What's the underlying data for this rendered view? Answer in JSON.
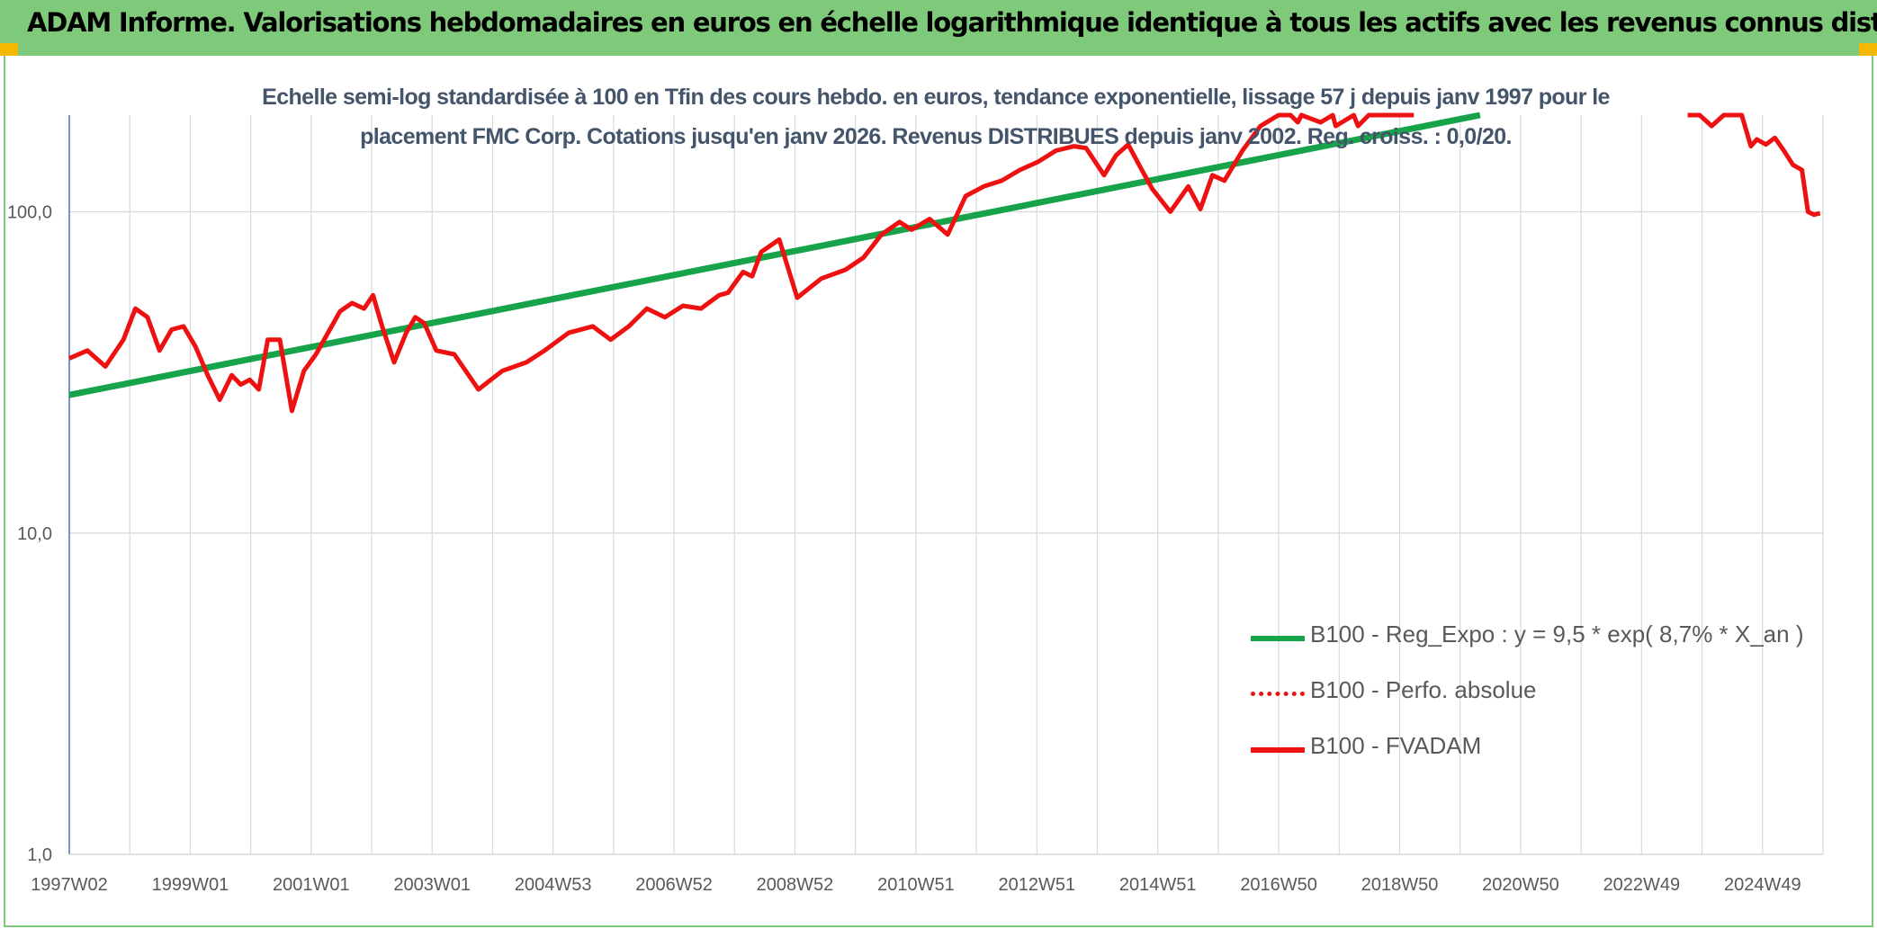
{
  "header": {
    "title": "ADAM Informe. Valorisations hebdomadaires en euros en échelle logarithmique identique à tous les actifs avec les revenus connus distribués"
  },
  "colors": {
    "header_bg": "#7fc97a",
    "trend": "#17a34a",
    "series": "#ee1111",
    "grid": "#d9d9d9",
    "subtitle": "#44546a"
  },
  "chart_data": {
    "type": "line",
    "title": "Echelle semi-log standardisée à 100 en Tfin des cours hebdo. en euros, tendance exponentielle, lissage 57 j depuis janv 1997 pour le placement FMC Corp. Cotations jusqu'en janv 2026. Revenus DISTRIBUES depuis janv 2002. Reg. croiss. : 0,0/20.",
    "y_scale": "log",
    "ylim": [
      1,
      200
    ],
    "y_ticks": [
      "1,0",
      "10,0",
      "100,0"
    ],
    "x_tick_labels": [
      "1997W02",
      "1999W01",
      "2001W01",
      "2003W01",
      "2004W53",
      "2006W52",
      "2008W52",
      "2010W51",
      "2012W51",
      "2014W51",
      "2016W50",
      "2018W50",
      "2020W50",
      "2022W49",
      "2024W49"
    ],
    "grid": true,
    "legend_position": "bottom-right",
    "legend": [
      {
        "label": "B100 - Reg_Expo : y = 9,5 * exp( 8,7% *  X_an )",
        "style": "solid-green"
      },
      {
        "label": "B100 - Perfo. absolue",
        "style": "dotted-red"
      },
      {
        "label": "B100 - FVADAM",
        "style": "solid-red"
      }
    ],
    "series": [
      {
        "name": "B100 - Reg_Expo : y = 9,5 * exp( 8,7% *  X_an )",
        "kind": "trend",
        "x": [
          1997.0,
          2020.45
        ],
        "y": [
          26.9,
          200
        ]
      },
      {
        "name": "B100 - FVADAM",
        "kind": "price",
        "x": [
          1997.0,
          1997.3,
          1997.6,
          1997.9,
          1998.1,
          1998.3,
          1998.5,
          1998.7,
          1998.9,
          1999.1,
          1999.3,
          1999.5,
          1999.7,
          1999.85,
          2000.0,
          2000.15,
          2000.3,
          2000.5,
          2000.7,
          2000.9,
          2001.1,
          2001.3,
          2001.5,
          2001.7,
          2001.9,
          2002.05,
          2002.2,
          2002.4,
          2002.6,
          2002.75,
          2002.9,
          2003.1,
          2003.4,
          2003.8,
          2004.2,
          2004.6,
          2004.9,
          2005.3,
          2005.7,
          2006.0,
          2006.3,
          2006.6,
          2006.9,
          2007.2,
          2007.5,
          2007.8,
          2007.95,
          2008.2,
          2008.35,
          2008.5,
          2008.8,
          2009.1,
          2009.5,
          2009.9,
          2010.2,
          2010.5,
          2010.8,
          2011.0,
          2011.3,
          2011.6,
          2011.9,
          2012.2,
          2012.5,
          2012.8,
          2013.1,
          2013.4,
          2013.7,
          2013.9,
          2014.2,
          2014.4,
          2014.6,
          2014.8,
          2015.0,
          2015.3,
          2015.6,
          2015.8,
          2016.0,
          2016.2,
          2016.5,
          2016.8,
          2017.1,
          2017.3,
          2017.42,
          2017.48,
          2017.8,
          2018.0,
          2018.05,
          2018.35,
          2018.42,
          2018.6,
          2019.3,
          2019.35
        ],
        "y": [
          35,
          37,
          33,
          40,
          50,
          47,
          37,
          43,
          44,
          38,
          31,
          26,
          31,
          29,
          30,
          28,
          40,
          40,
          24,
          32,
          36,
          42,
          49,
          52,
          50,
          55,
          44,
          34,
          42,
          47,
          45,
          37,
          36,
          28,
          32,
          34,
          37,
          42,
          44,
          40,
          44,
          50,
          47,
          51,
          50,
          55,
          56,
          65,
          63,
          75,
          82,
          54,
          62,
          66,
          72,
          85,
          93,
          88,
          95,
          85,
          112,
          120,
          125,
          135,
          143,
          155,
          160,
          158,
          130,
          150,
          162,
          138,
          118,
          100,
          120,
          102,
          130,
          125,
          155,
          185,
          200,
          200,
          190,
          200,
          190,
          200,
          185,
          200,
          185,
          200,
          200,
          200
        ]
      },
      {
        "name": "B100 - FVADAM",
        "kind": "price",
        "x": [
          2023.9,
          2024.1,
          2024.3,
          2024.5,
          2024.7,
          2024.8,
          2024.95,
          2025.05,
          2025.2,
          2025.35,
          2025.5,
          2025.65,
          2025.8,
          2025.9,
          2026.0,
          2026.1
        ],
        "y": [
          200,
          200,
          185,
          200,
          200,
          200,
          160,
          168,
          162,
          170,
          155,
          140,
          135,
          100,
          98,
          99
        ]
      }
    ]
  }
}
